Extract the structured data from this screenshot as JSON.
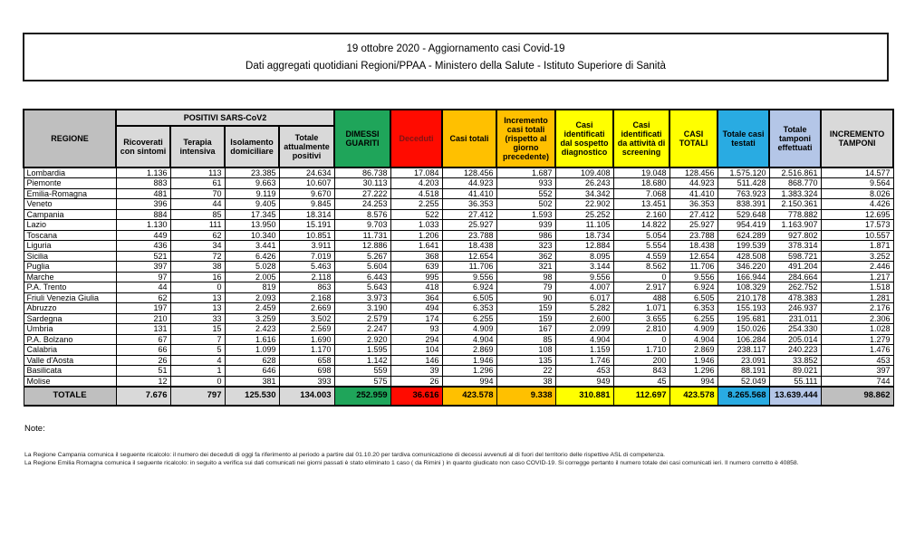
{
  "title": {
    "line1": "19 ottobre 2020 - Aggiornamento casi Covid-19",
    "line2": "Dati aggregati quotidiani Regioni/PPAA - Ministero della Salute - Istituto Superiore di Sanità"
  },
  "table": {
    "region_header": "REGIONE",
    "group_header": "POSITIVI SARS-CoV2",
    "sub_headers": [
      "Ricoverati con sintomi",
      "Terapia intensiva",
      "Isolamento domiciliare",
      "Totale attualmente positivi"
    ],
    "col_headers": {
      "dimessi": "DIMESSI GUARITI",
      "deceduti": "Deceduti",
      "casi_totali": "Casi totali",
      "incremento_casi": "Incremento casi totali (rispetto al giorno precedente)",
      "sospetto": "Casi identificati dal sospetto diagnostico",
      "screening": "Casi identificati da attività di screening",
      "casi_totali2": "CASI TOTALI",
      "testati": "Totale casi testati",
      "tamponi": "Totale tamponi effettuati",
      "incremento_tamponi": "INCREMENTO TAMPONI"
    },
    "rows": [
      {
        "region": "Lombardia",
        "values": [
          "1.136",
          "113",
          "23.385",
          "24.634",
          "86.738",
          "17.084",
          "128.456",
          "1.687",
          "109.408",
          "19.048",
          "128.456",
          "1.575.120",
          "2.516.861",
          "14.577"
        ]
      },
      {
        "region": "Piemonte",
        "values": [
          "883",
          "61",
          "9.663",
          "10.607",
          "30.113",
          "4.203",
          "44.923",
          "933",
          "26.243",
          "18.680",
          "44.923",
          "511.428",
          "868.770",
          "9.564"
        ]
      },
      {
        "region": "Emilia-Romagna",
        "values": [
          "481",
          "70",
          "9.119",
          "9.670",
          "27.222",
          "4.518",
          "41.410",
          "552",
          "34.342",
          "7.068",
          "41.410",
          "763.923",
          "1.383.324",
          "8.026"
        ]
      },
      {
        "region": "Veneto",
        "values": [
          "396",
          "44",
          "9.405",
          "9.845",
          "24.253",
          "2.255",
          "36.353",
          "502",
          "22.902",
          "13.451",
          "36.353",
          "838.391",
          "2.150.361",
          "4.426"
        ]
      },
      {
        "region": "Campania",
        "values": [
          "884",
          "85",
          "17.345",
          "18.314",
          "8.576",
          "522",
          "27.412",
          "1.593",
          "25.252",
          "2.160",
          "27.412",
          "529.648",
          "778.882",
          "12.695"
        ]
      },
      {
        "region": "Lazio",
        "values": [
          "1.130",
          "111",
          "13.950",
          "15.191",
          "9.703",
          "1.033",
          "25.927",
          "939",
          "11.105",
          "14.822",
          "25.927",
          "954.419",
          "1.163.907",
          "17.573"
        ]
      },
      {
        "region": "Toscana",
        "values": [
          "449",
          "62",
          "10.340",
          "10.851",
          "11.731",
          "1.206",
          "23.788",
          "986",
          "18.734",
          "5.054",
          "23.788",
          "624.289",
          "927.802",
          "10.557"
        ]
      },
      {
        "region": "Liguria",
        "values": [
          "436",
          "34",
          "3.441",
          "3.911",
          "12.886",
          "1.641",
          "18.438",
          "323",
          "12.884",
          "5.554",
          "18.438",
          "199.539",
          "378.314",
          "1.871"
        ]
      },
      {
        "region": "Sicilia",
        "values": [
          "521",
          "72",
          "6.426",
          "7.019",
          "5.267",
          "368",
          "12.654",
          "362",
          "8.095",
          "4.559",
          "12.654",
          "428.508",
          "598.721",
          "3.252"
        ]
      },
      {
        "region": "Puglia",
        "values": [
          "397",
          "38",
          "5.028",
          "5.463",
          "5.604",
          "639",
          "11.706",
          "321",
          "3.144",
          "8.562",
          "11.706",
          "346.220",
          "491.204",
          "2.446"
        ]
      },
      {
        "region": "Marche",
        "values": [
          "97",
          "16",
          "2.005",
          "2.118",
          "6.443",
          "995",
          "9.556",
          "98",
          "9.556",
          "0",
          "9.556",
          "166.944",
          "284.664",
          "1.217"
        ]
      },
      {
        "region": "P.A. Trento",
        "values": [
          "44",
          "0",
          "819",
          "863",
          "5.643",
          "418",
          "6.924",
          "79",
          "4.007",
          "2.917",
          "6.924",
          "108.329",
          "262.752",
          "1.518"
        ]
      },
      {
        "region": "Friuli Venezia Giulia",
        "values": [
          "62",
          "13",
          "2.093",
          "2.168",
          "3.973",
          "364",
          "6.505",
          "90",
          "6.017",
          "488",
          "6.505",
          "210.178",
          "478.383",
          "1.281"
        ]
      },
      {
        "region": "Abruzzo",
        "values": [
          "197",
          "13",
          "2.459",
          "2.669",
          "3.190",
          "494",
          "6.353",
          "159",
          "5.282",
          "1.071",
          "6.353",
          "155.193",
          "246.937",
          "2.176"
        ]
      },
      {
        "region": "Sardegna",
        "values": [
          "210",
          "33",
          "3.259",
          "3.502",
          "2.579",
          "174",
          "6.255",
          "159",
          "2.600",
          "3.655",
          "6.255",
          "195.681",
          "231.011",
          "2.306"
        ]
      },
      {
        "region": "Umbria",
        "values": [
          "131",
          "15",
          "2.423",
          "2.569",
          "2.247",
          "93",
          "4.909",
          "167",
          "2.099",
          "2.810",
          "4.909",
          "150.026",
          "254.330",
          "1.028"
        ]
      },
      {
        "region": "P.A. Bolzano",
        "values": [
          "67",
          "7",
          "1.616",
          "1.690",
          "2.920",
          "294",
          "4.904",
          "85",
          "4.904",
          "0",
          "4.904",
          "106.284",
          "205.014",
          "1.279"
        ]
      },
      {
        "region": "Calabria",
        "values": [
          "66",
          "5",
          "1.099",
          "1.170",
          "1.595",
          "104",
          "2.869",
          "108",
          "1.159",
          "1.710",
          "2.869",
          "238.117",
          "240.223",
          "1.476"
        ]
      },
      {
        "region": "Valle d'Aosta",
        "values": [
          "26",
          "4",
          "628",
          "658",
          "1.142",
          "146",
          "1.946",
          "135",
          "1.746",
          "200",
          "1.946",
          "23.091",
          "33.852",
          "453"
        ]
      },
      {
        "region": "Basilicata",
        "values": [
          "51",
          "1",
          "646",
          "698",
          "559",
          "39",
          "1.296",
          "22",
          "453",
          "843",
          "1.296",
          "88.191",
          "89.021",
          "397"
        ]
      },
      {
        "region": "Molise",
        "values": [
          "12",
          "0",
          "381",
          "393",
          "575",
          "26",
          "994",
          "38",
          "949",
          "45",
          "994",
          "52.049",
          "55.111",
          "744"
        ]
      }
    ],
    "totale": {
      "label": "TOTALE",
      "values": [
        "7.676",
        "797",
        "125.530",
        "134.003",
        "252.959",
        "36.616",
        "423.578",
        "9.338",
        "310.881",
        "112.697",
        "423.578",
        "8.265.568",
        "13.639.444",
        "98.862"
      ]
    }
  },
  "notes": {
    "title": "Note:",
    "line1": "La Regione Campania comunica il seguente ricalcolo: il numero dei deceduti di oggi fa riferimento al periodo a partire dal 01.10.20 per tardiva comunicazione di decessi avvenuti al di fuori del territorio delle rispettive ASL di competenza.",
    "line2": "La Regione Emilia Romagna comunica il seguente ricalcolo: in seguito a verifica sui dati comunicati nei giorni passati è stato eliminato 1 caso ( da Rimini ) in quanto giudicato non caso COVID-19. Si corregge pertanto il numero totale dei casi comunicati ieri. Il numero corretto è 40858."
  },
  "colors": {
    "header_gray": "#BFBFBF",
    "header_light_gray": "#D9D9D9",
    "green": "#1FA55A",
    "red": "#FF0B00",
    "orange": "#FFC000",
    "yellow": "#FFFF00",
    "blue": "#29ABE2",
    "periwinkle": "#B4C6E7"
  }
}
